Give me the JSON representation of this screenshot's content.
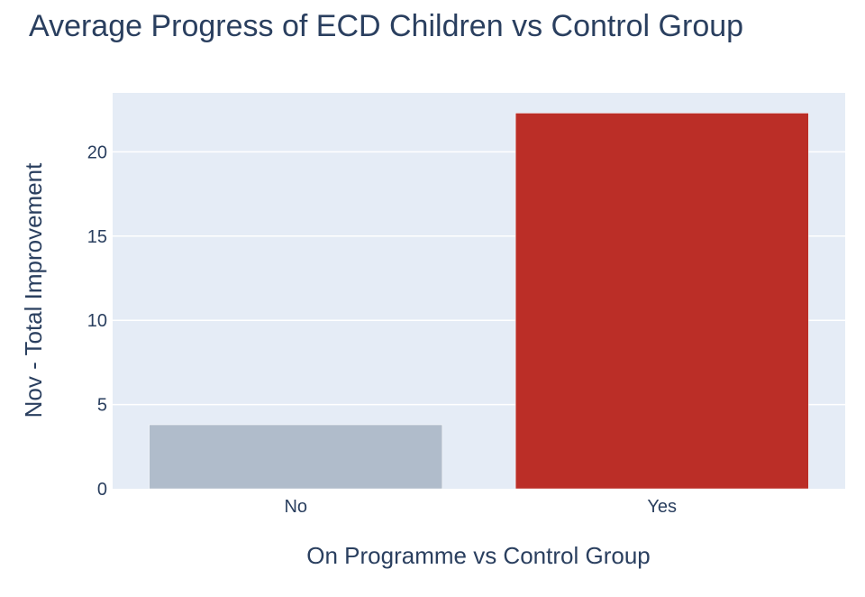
{
  "chart_data": {
    "type": "bar",
    "title": "Average Progress of ECD Children vs Control Group",
    "xlabel": "On Programme vs Control Group",
    "ylabel": "Nov - Total Improvement",
    "categories": [
      "No",
      "Yes"
    ],
    "values": [
      3.8,
      22.3
    ],
    "bar_colors": [
      "#b0bccb",
      "#bb2e27"
    ],
    "ylim": [
      0,
      23.5
    ],
    "yticks": [
      0,
      5,
      10,
      15,
      20
    ],
    "grid": true,
    "plot_background": "#e5ecf6",
    "text_color": "#2a3f5f"
  }
}
